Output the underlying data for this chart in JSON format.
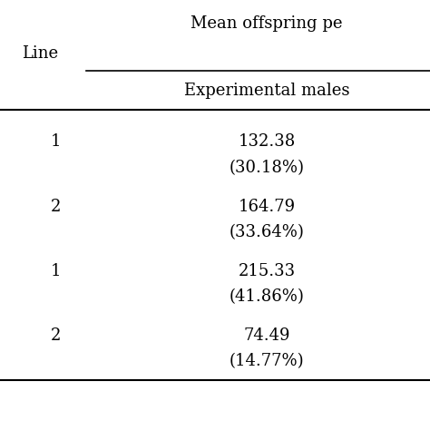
{
  "col_header_top": "Mean offspring pe",
  "col_header_sub": "Experimental males",
  "row_label_header": "Line",
  "rows": [
    {
      "line": "1",
      "value": "132.38",
      "pct": "(30.18%)"
    },
    {
      "line": "2",
      "value": "164.79",
      "pct": "(33.64%)"
    },
    {
      "line": "1",
      "value": "215.33",
      "pct": "(41.86%)"
    },
    {
      "line": "2",
      "value": "74.49",
      "pct": "(14.77%)"
    }
  ],
  "bg_color": "#ffffff",
  "text_color": "#000000",
  "font_size": 13,
  "header_font_size": 13,
  "line_color": "#000000",
  "fig_width": 4.74,
  "fig_height": 4.74
}
